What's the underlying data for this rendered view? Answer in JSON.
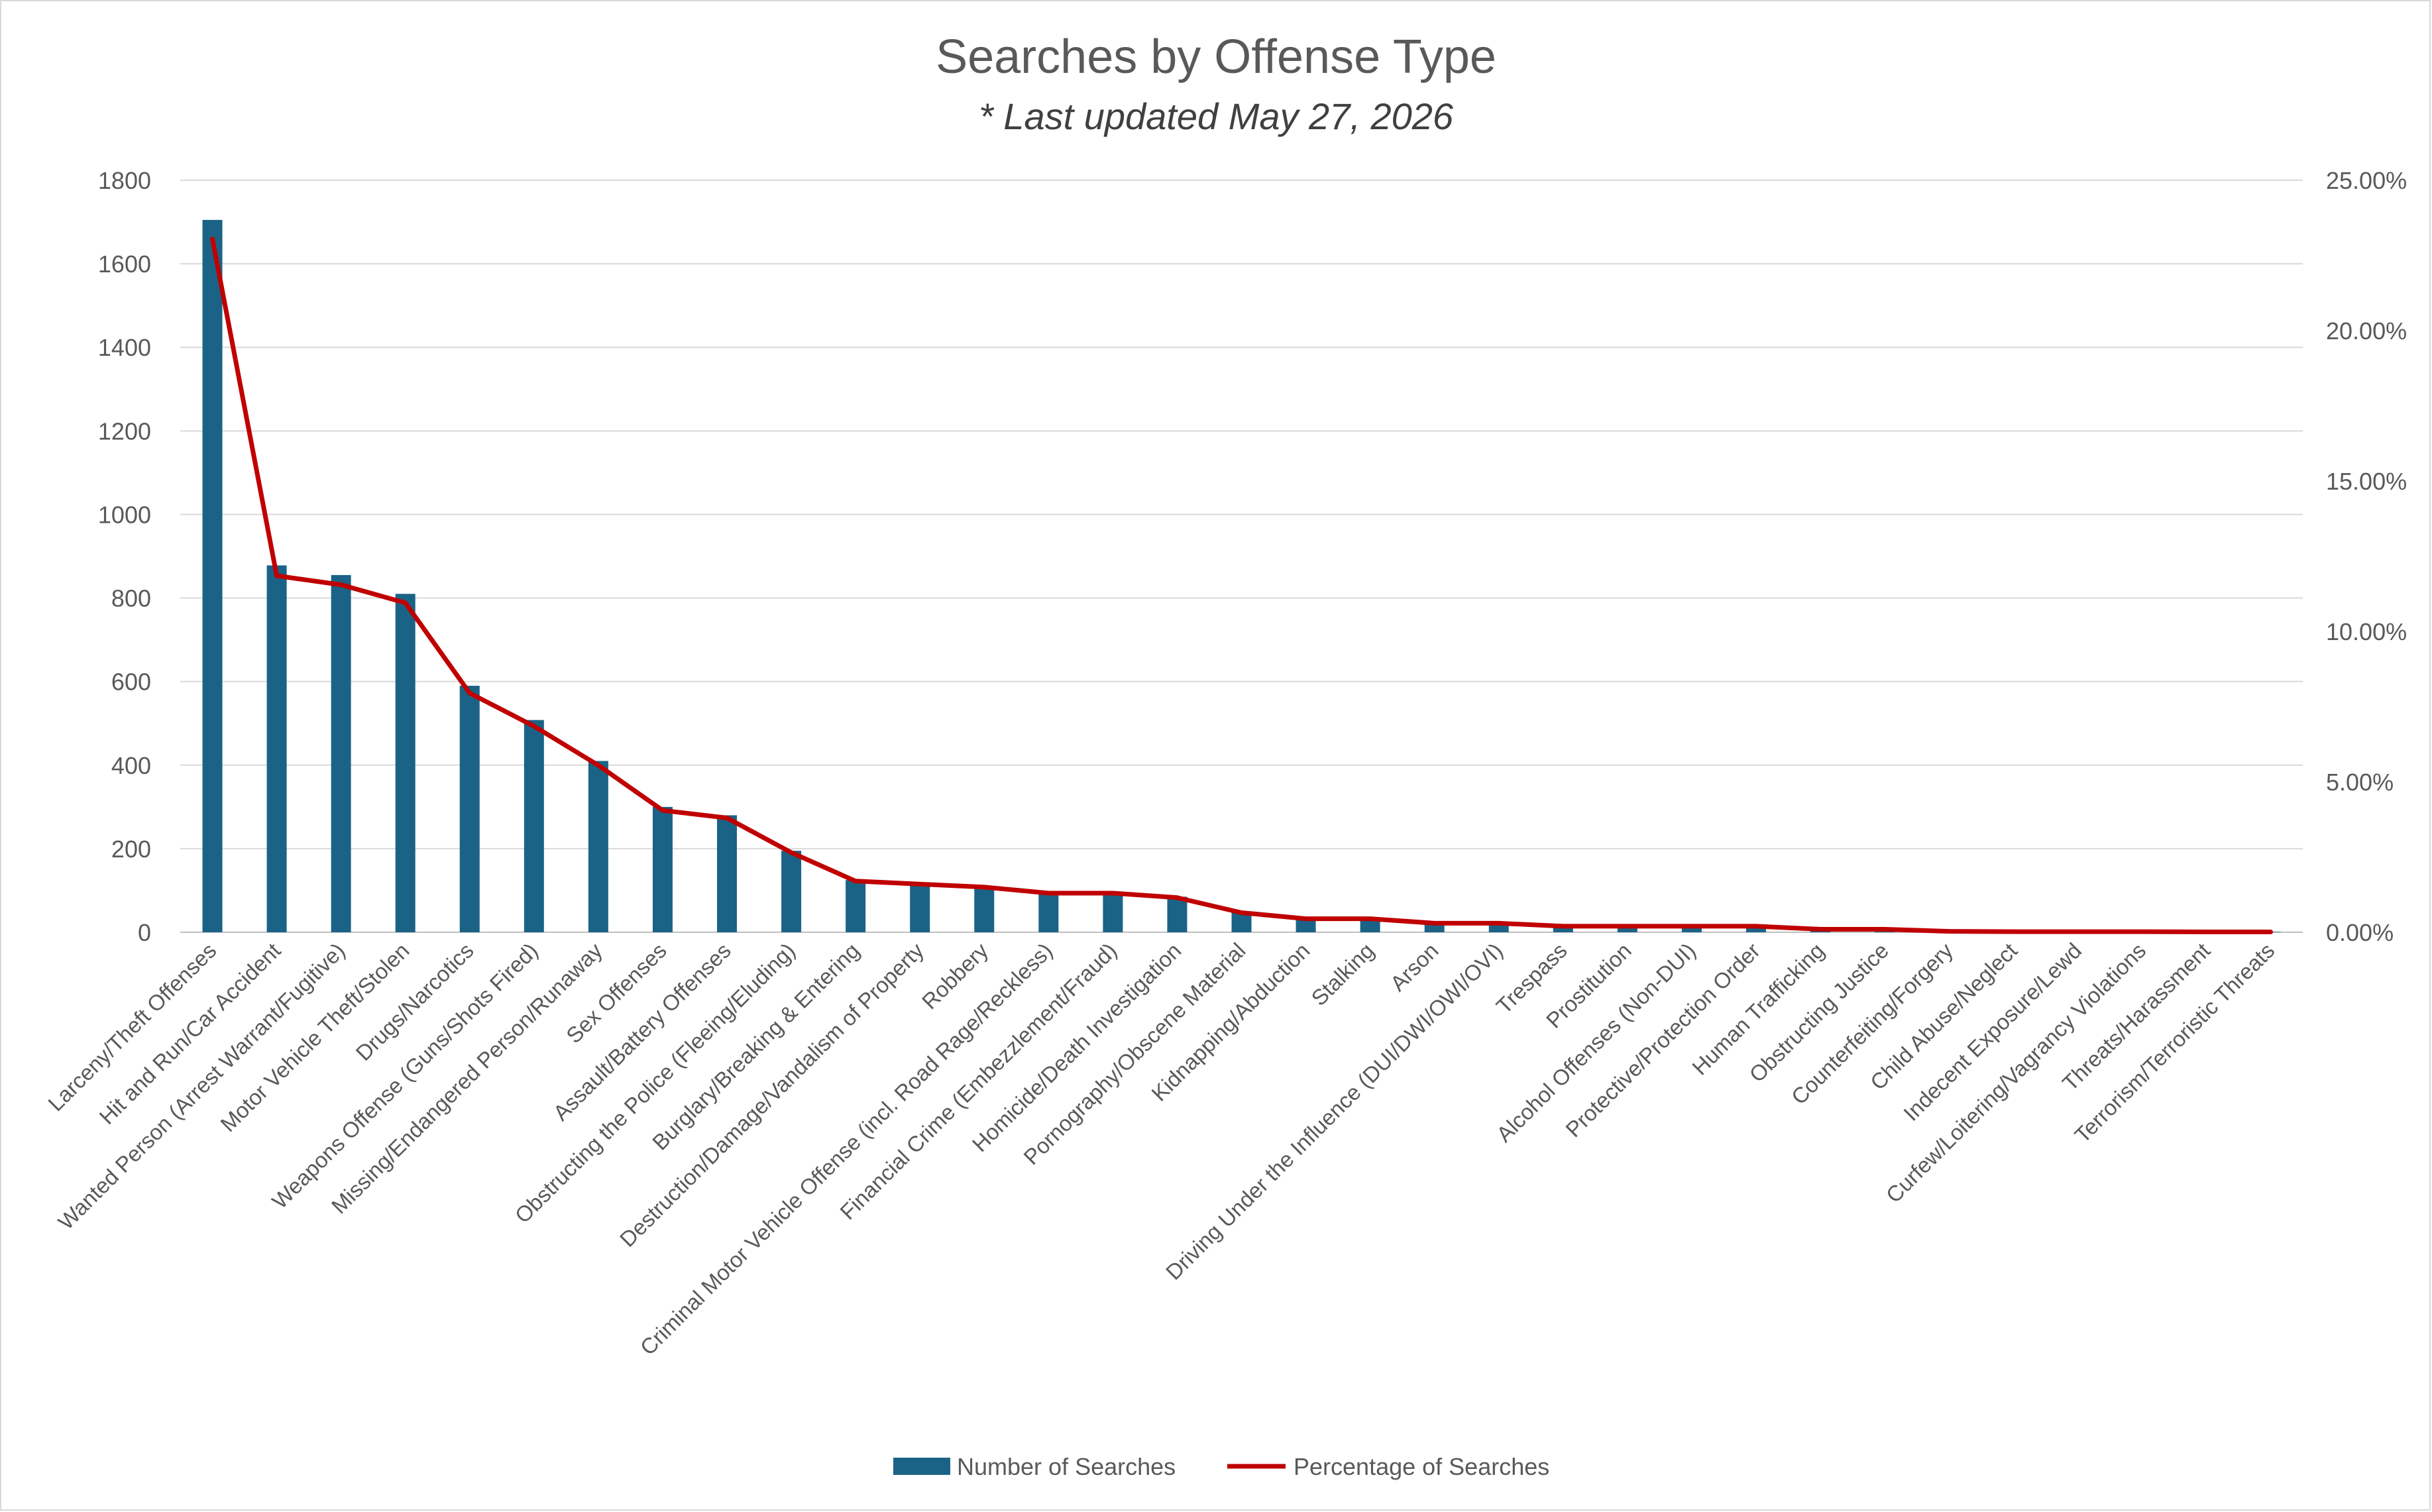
{
  "chart_data": {
    "type": "bar",
    "title": "Searches by Offense Type",
    "subtitle": "* Last updated May 27, 2026",
    "categories": [
      "Larceny/Theft Offenses",
      "Hit and Run/Car Accident",
      "Wanted Person (Arrest Warrant/Fugitive)",
      "Motor Vehicle Theft/Stolen",
      "Drugs/Narcotics",
      "Weapons Offense (Guns/Shots Fired)",
      "Missing/Endangered Person/Runaway",
      "Sex Offenses",
      "Assault/Battery Offenses",
      "Obstructing the Police (Fleeing/Eluding)",
      "Burglary/Breaking & Entering",
      "Destruction/Damage/Vandalism of Property",
      "Robbery",
      "Criminal Motor Vehicle Offense (incl. Road Rage/Reckless)",
      "Financial Crime (Embezzlement/Fraud)",
      "Homicide/Death Investigation",
      "Pornography/Obscene Material",
      "Kidnapping/Abduction",
      "Stalking",
      "Arson",
      "Driving Under the Influence (DUI/DWI/OWI/OVI)",
      "Trespass",
      "Prostitution",
      "Alcohol Offenses (Non-DUI)",
      "Protective/Protection Order",
      "Human Trafficking",
      "Obstructing Justice",
      "Counterfeiting/Forgery",
      "Child Abuse/Neglect",
      "Indecent Exposure/Lewd",
      "Curfew/Loitering/Vagrancy Violations",
      "Threats/Harassment",
      "Terrorism/Terroristic Threats"
    ],
    "series": [
      {
        "name": "Number of Searches",
        "type": "bar",
        "axis": "left",
        "color": "#1b6386",
        "values": [
          1705,
          878,
          855,
          810,
          590,
          508,
          410,
          300,
          280,
          195,
          125,
          118,
          110,
          95,
          95,
          85,
          50,
          35,
          35,
          22,
          22,
          15,
          15,
          15,
          15,
          8,
          8,
          3,
          2,
          2,
          2,
          1,
          1
        ]
      },
      {
        "name": "Percentage of Searches",
        "type": "line",
        "axis": "right",
        "color": "#c00000",
        "values": [
          0.2305,
          0.1185,
          0.1155,
          0.1095,
          0.0795,
          0.0685,
          0.0555,
          0.0405,
          0.038,
          0.0265,
          0.017,
          0.016,
          0.015,
          0.013,
          0.013,
          0.0115,
          0.0065,
          0.0045,
          0.0045,
          0.003,
          0.003,
          0.002,
          0.002,
          0.002,
          0.002,
          0.001,
          0.001,
          0.0003,
          0.0002,
          0.0002,
          0.0002,
          0.0001,
          0.0001
        ]
      }
    ],
    "y_left": {
      "ylim": [
        0,
        1800
      ],
      "ticks": [
        "0",
        "200",
        "400",
        "600",
        "800",
        "1000",
        "1200",
        "1400",
        "1600",
        "1800"
      ]
    },
    "y_right": {
      "ylim": [
        0,
        0.25
      ],
      "ticks": [
        "0.00%",
        "5.00%",
        "10.00%",
        "15.00%",
        "20.00%",
        "25.00%"
      ]
    },
    "grid": true,
    "legend_position": "bottom"
  }
}
